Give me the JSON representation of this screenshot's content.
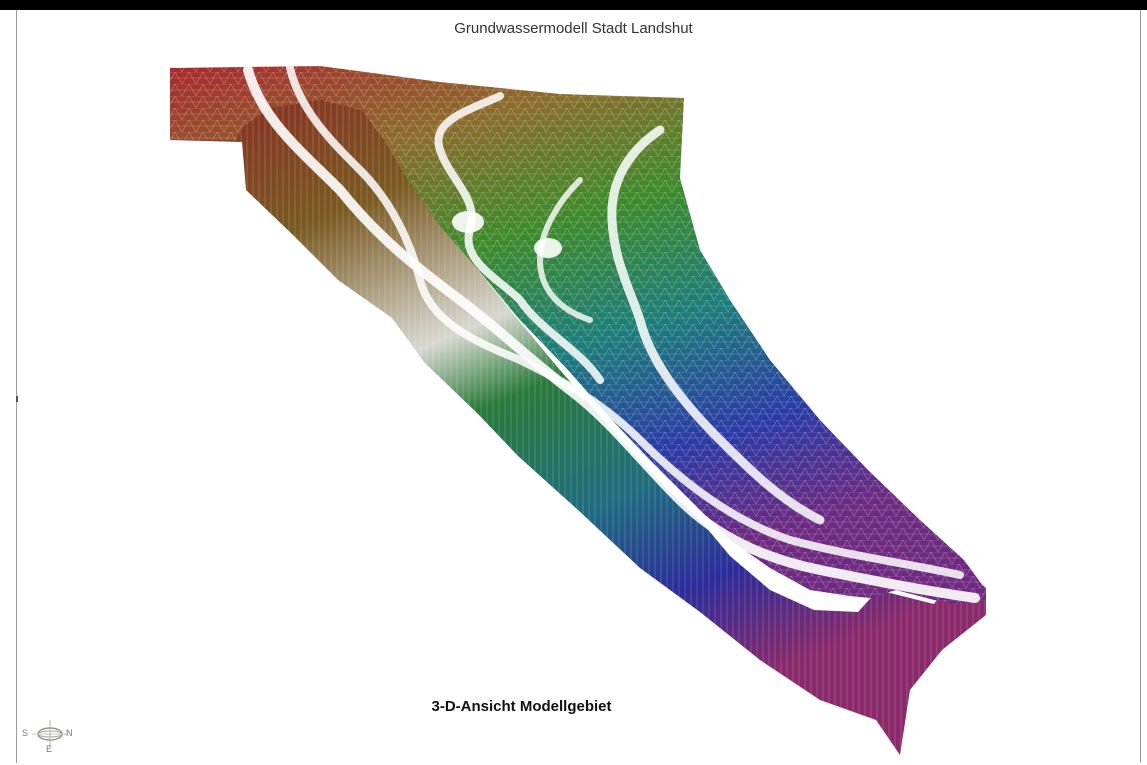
{
  "title": "Grundwassermodell Stadt Landshut",
  "caption": "3-D-Ansicht Modellgebiet",
  "compass": {
    "south": "S",
    "north": "N",
    "east": "E"
  },
  "colors": {
    "north_top": "#a22a30",
    "mid_upper": "#8a6b2a",
    "mid": "#2f8a2f",
    "mid_lower": "#1f7f80",
    "south": "#2a33a8",
    "south_end": "#7a2a7a",
    "river": "#ffffff"
  }
}
